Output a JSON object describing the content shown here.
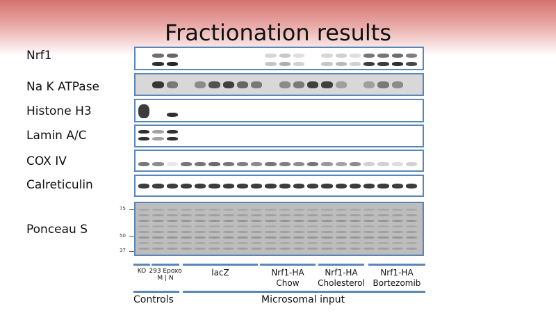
{
  "title": "Fractionation results",
  "rows": [
    {
      "label": "Nrf1"
    },
    {
      "label": "Na K ATPase"
    },
    {
      "label": "Histone H3"
    },
    {
      "label": "Lamin A/C"
    },
    {
      "label": "COX IV"
    },
    {
      "label": "Calreticulin"
    },
    {
      "label": "Ponceau S"
    }
  ],
  "markers": [
    "75",
    "50",
    "37"
  ],
  "groups": {
    "ko": "KO",
    "epoxo_top": "293 Epoxo",
    "epoxo_bottom": "M | N",
    "lacz": "lacZ",
    "chow_1": "Nrf1-HA",
    "chow_2": "Chow",
    "chol_1": "Nrf1-HA",
    "chol_2": "Cholesterol",
    "bort_1": "Nrf1-HA",
    "bort_2": "Bortezomib",
    "controls": "Controls",
    "microsomal": "Microsomal input"
  },
  "colors": {
    "accent": "#5a86b8",
    "band": "#1a1a1a",
    "header": "#d4726f"
  }
}
